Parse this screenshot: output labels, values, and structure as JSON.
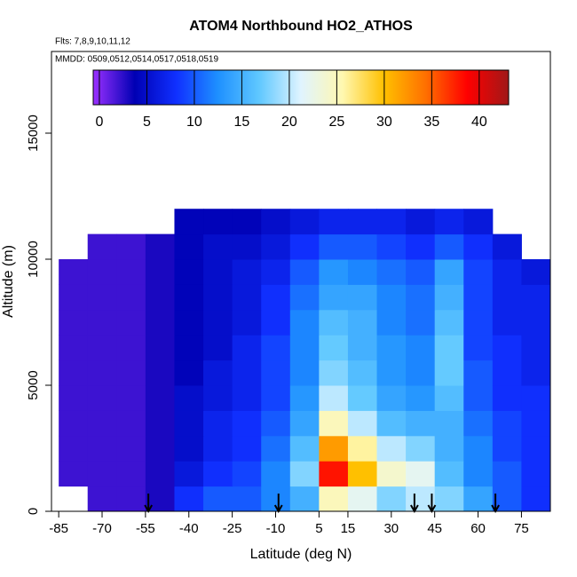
{
  "chart_data": {
    "type": "heatmap",
    "title": "ATOM4 Northbound HO2_ATHOS",
    "flights_note": "Flts: 7,8,9,10,11,12",
    "dates_note": "MMDD: 0509,0512,0514,0517,0518,0519",
    "x_label": "Latitude (deg N)",
    "y_label": "Altitude (m)",
    "xlim": [
      -87.5,
      85
    ],
    "ylim": [
      0,
      18240
    ],
    "xticks": [
      -85,
      -70,
      -55,
      -40,
      -25,
      -10,
      5,
      15,
      30,
      45,
      60,
      75
    ],
    "yticks": [
      0,
      5000,
      10000,
      15000
    ],
    "lat_bins": [
      -85,
      -75,
      -65,
      -55,
      -45,
      -35,
      -25,
      -15,
      -5,
      5,
      15,
      25,
      35,
      45,
      55,
      65,
      75,
      85
    ],
    "alt_bins": [
      0,
      1000,
      2000,
      3000,
      4000,
      5000,
      6000,
      7000,
      8000,
      9000,
      10000,
      11000,
      12000
    ],
    "values": [
      [
        null,
        2,
        2,
        3,
        8,
        10,
        10,
        12,
        15,
        25,
        22,
        18,
        20,
        18,
        14,
        10,
        8
      ],
      [
        2,
        2,
        2,
        3,
        6,
        8,
        9,
        12,
        18,
        38,
        30,
        24,
        22,
        16,
        12,
        10,
        8
      ],
      [
        2,
        2,
        2,
        3,
        5,
        7,
        8,
        11,
        16,
        32,
        26,
        20,
        18,
        15,
        12,
        9,
        8
      ],
      [
        2,
        2,
        2,
        3,
        5,
        7,
        8,
        10,
        14,
        25,
        20,
        16,
        15,
        15,
        11,
        9,
        8
      ],
      [
        2,
        2,
        2,
        3,
        5,
        6,
        7,
        9,
        13,
        20,
        17,
        14,
        13,
        16,
        10,
        8,
        8
      ],
      [
        2,
        2,
        2,
        3,
        4,
        6,
        7,
        9,
        12,
        18,
        16,
        13,
        12,
        17,
        10,
        8,
        7
      ],
      [
        2,
        2,
        2,
        3,
        4,
        5,
        7,
        9,
        12,
        17,
        15,
        13,
        12,
        17,
        9,
        8,
        7
      ],
      [
        2,
        2,
        2,
        3,
        4,
        5,
        6,
        8,
        12,
        16,
        15,
        12,
        11,
        16,
        9,
        7,
        7
      ],
      [
        2,
        2,
        2,
        3,
        4,
        5,
        6,
        8,
        11,
        14,
        14,
        12,
        11,
        15,
        9,
        7,
        7
      ],
      [
        2,
        2,
        2,
        3,
        4,
        5,
        6,
        7,
        10,
        13,
        12,
        11,
        10,
        14,
        9,
        7,
        6
      ],
      [
        null,
        2,
        2,
        3,
        4,
        5,
        5,
        6,
        8,
        10,
        10,
        9,
        8,
        10,
        8,
        6,
        null
      ],
      [
        null,
        null,
        null,
        null,
        4,
        4,
        4,
        5,
        6,
        7,
        7,
        7,
        6,
        7,
        6,
        null,
        null
      ]
    ],
    "arrows": [
      -54,
      -9,
      38,
      44,
      66
    ],
    "colorbar": {
      "lim": [
        -0.65,
        43.1
      ],
      "ticks": [
        0,
        5,
        10,
        15,
        20,
        25,
        30,
        35,
        40
      ],
      "colors": [
        "#9b30ff",
        "#0000b4",
        "#1030ff",
        "#1e90ff",
        "#60c8ff",
        "#e0f4ff",
        "#fff8b0",
        "#ffc000",
        "#ff7000",
        "#ff0000",
        "#a01818"
      ]
    }
  }
}
